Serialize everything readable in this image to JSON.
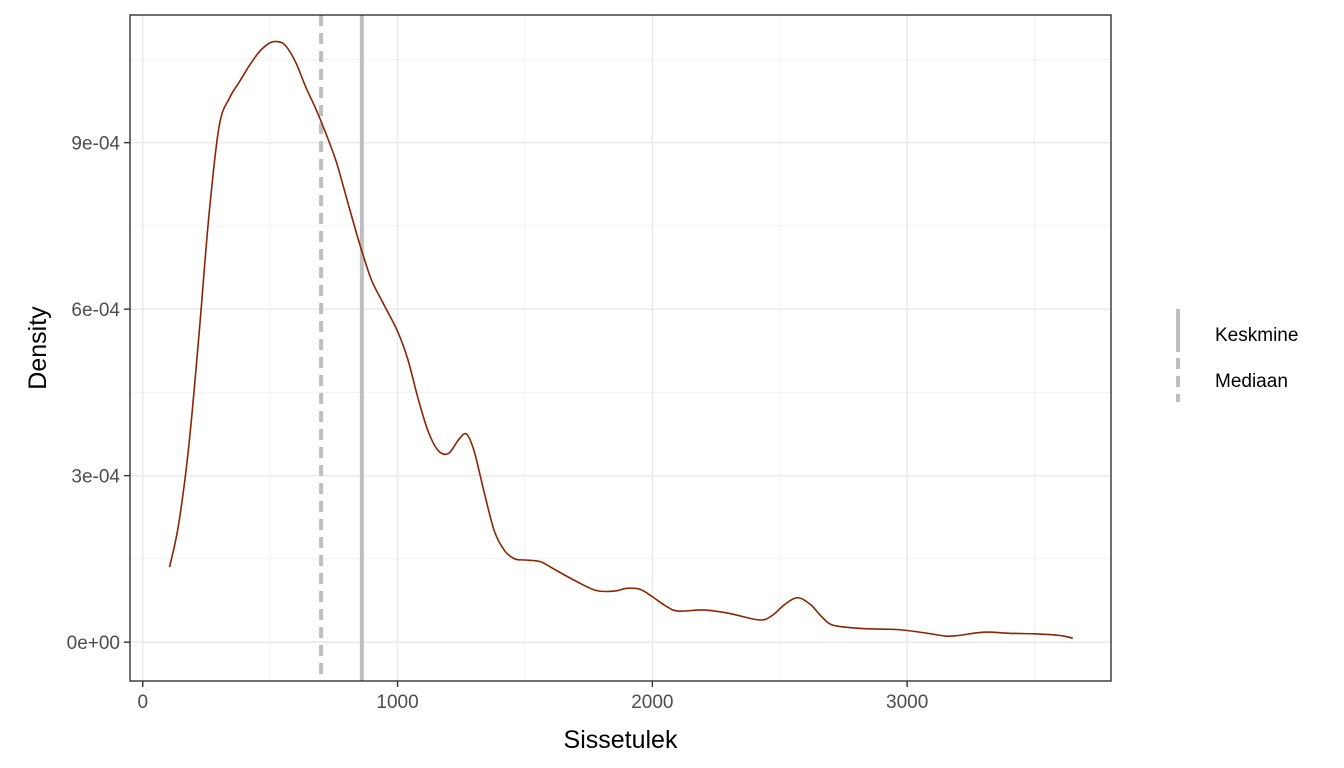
{
  "chart_data": {
    "type": "line",
    "xlabel": "Sissetulek",
    "ylabel": "Density",
    "xlim": [
      -50,
      3800
    ],
    "ylim": [
      -7e-05,
      0.00113
    ],
    "x_ticks": [
      0,
      1000,
      2000,
      3000
    ],
    "x_tick_labels": [
      "0",
      "1000",
      "2000",
      "3000"
    ],
    "y_ticks": [
      0,
      0.0003,
      0.0006,
      0.0009
    ],
    "y_tick_labels": [
      "0e+00",
      "3e-04",
      "6e-04",
      "9e-04"
    ],
    "grid": true,
    "series": [
      {
        "color": "#8b2500",
        "x": [
          105,
          140,
          180,
          220,
          260,
          300,
          340,
          380,
          420,
          460,
          500,
          530,
          560,
          600,
          640,
          680,
          720,
          760,
          800,
          840,
          870,
          900,
          950,
          1000,
          1040,
          1080,
          1120,
          1160,
          1200,
          1240,
          1270,
          1300,
          1340,
          1380,
          1420,
          1460,
          1500,
          1560,
          1620,
          1700,
          1780,
          1850,
          1900,
          1950,
          2000,
          2050,
          2100,
          2200,
          2300,
          2420,
          2470,
          2520,
          2570,
          2620,
          2660,
          2700,
          2760,
          2850,
          2950,
          3000,
          3080,
          3150,
          3200,
          3300,
          3400,
          3500,
          3600,
          3650
        ],
        "y": [
          0.000135,
          0.00021,
          0.00035,
          0.00055,
          0.00077,
          0.00093,
          0.00098,
          0.00101,
          0.00104,
          0.001065,
          0.00108,
          0.001082,
          0.001075,
          0.001045,
          0.001,
          0.00096,
          0.000915,
          0.000865,
          0.0008,
          0.000735,
          0.00069,
          0.00065,
          0.000605,
          0.00056,
          0.00051,
          0.00044,
          0.00038,
          0.000345,
          0.00034,
          0.000365,
          0.000375,
          0.000345,
          0.00027,
          0.0002,
          0.000165,
          0.00015,
          0.000148,
          0.000145,
          0.00013,
          0.00011,
          9.3e-05,
          9.2e-05,
          9.7e-05,
          9.55e-05,
          8.2e-05,
          6.6e-05,
          5.6e-05,
          5.8e-05,
          5.2e-05,
          4e-05,
          4.8e-05,
          6.8e-05,
          8e-05,
          6.8e-05,
          4.8e-05,
          3.2e-05,
          2.7e-05,
          2.4e-05,
          2.3e-05,
          2.1e-05,
          1.6e-05,
          1.1e-05,
          1.2e-05,
          1.8e-05,
          1.6e-05,
          1.5e-05,
          1.2e-05,
          7e-06
        ]
      }
    ],
    "vlines": [
      {
        "label": "Keskmine",
        "x": 860,
        "style": "solid",
        "color": "#bebebe"
      },
      {
        "label": "Mediaan",
        "x": 700,
        "style": "dashed",
        "color": "#bebebe"
      }
    ],
    "legend": {
      "position": "right",
      "items": [
        {
          "label": "Keskmine",
          "style": "solid",
          "color": "#bebebe"
        },
        {
          "label": "Mediaan",
          "style": "dashed",
          "color": "#bebebe"
        }
      ]
    }
  }
}
